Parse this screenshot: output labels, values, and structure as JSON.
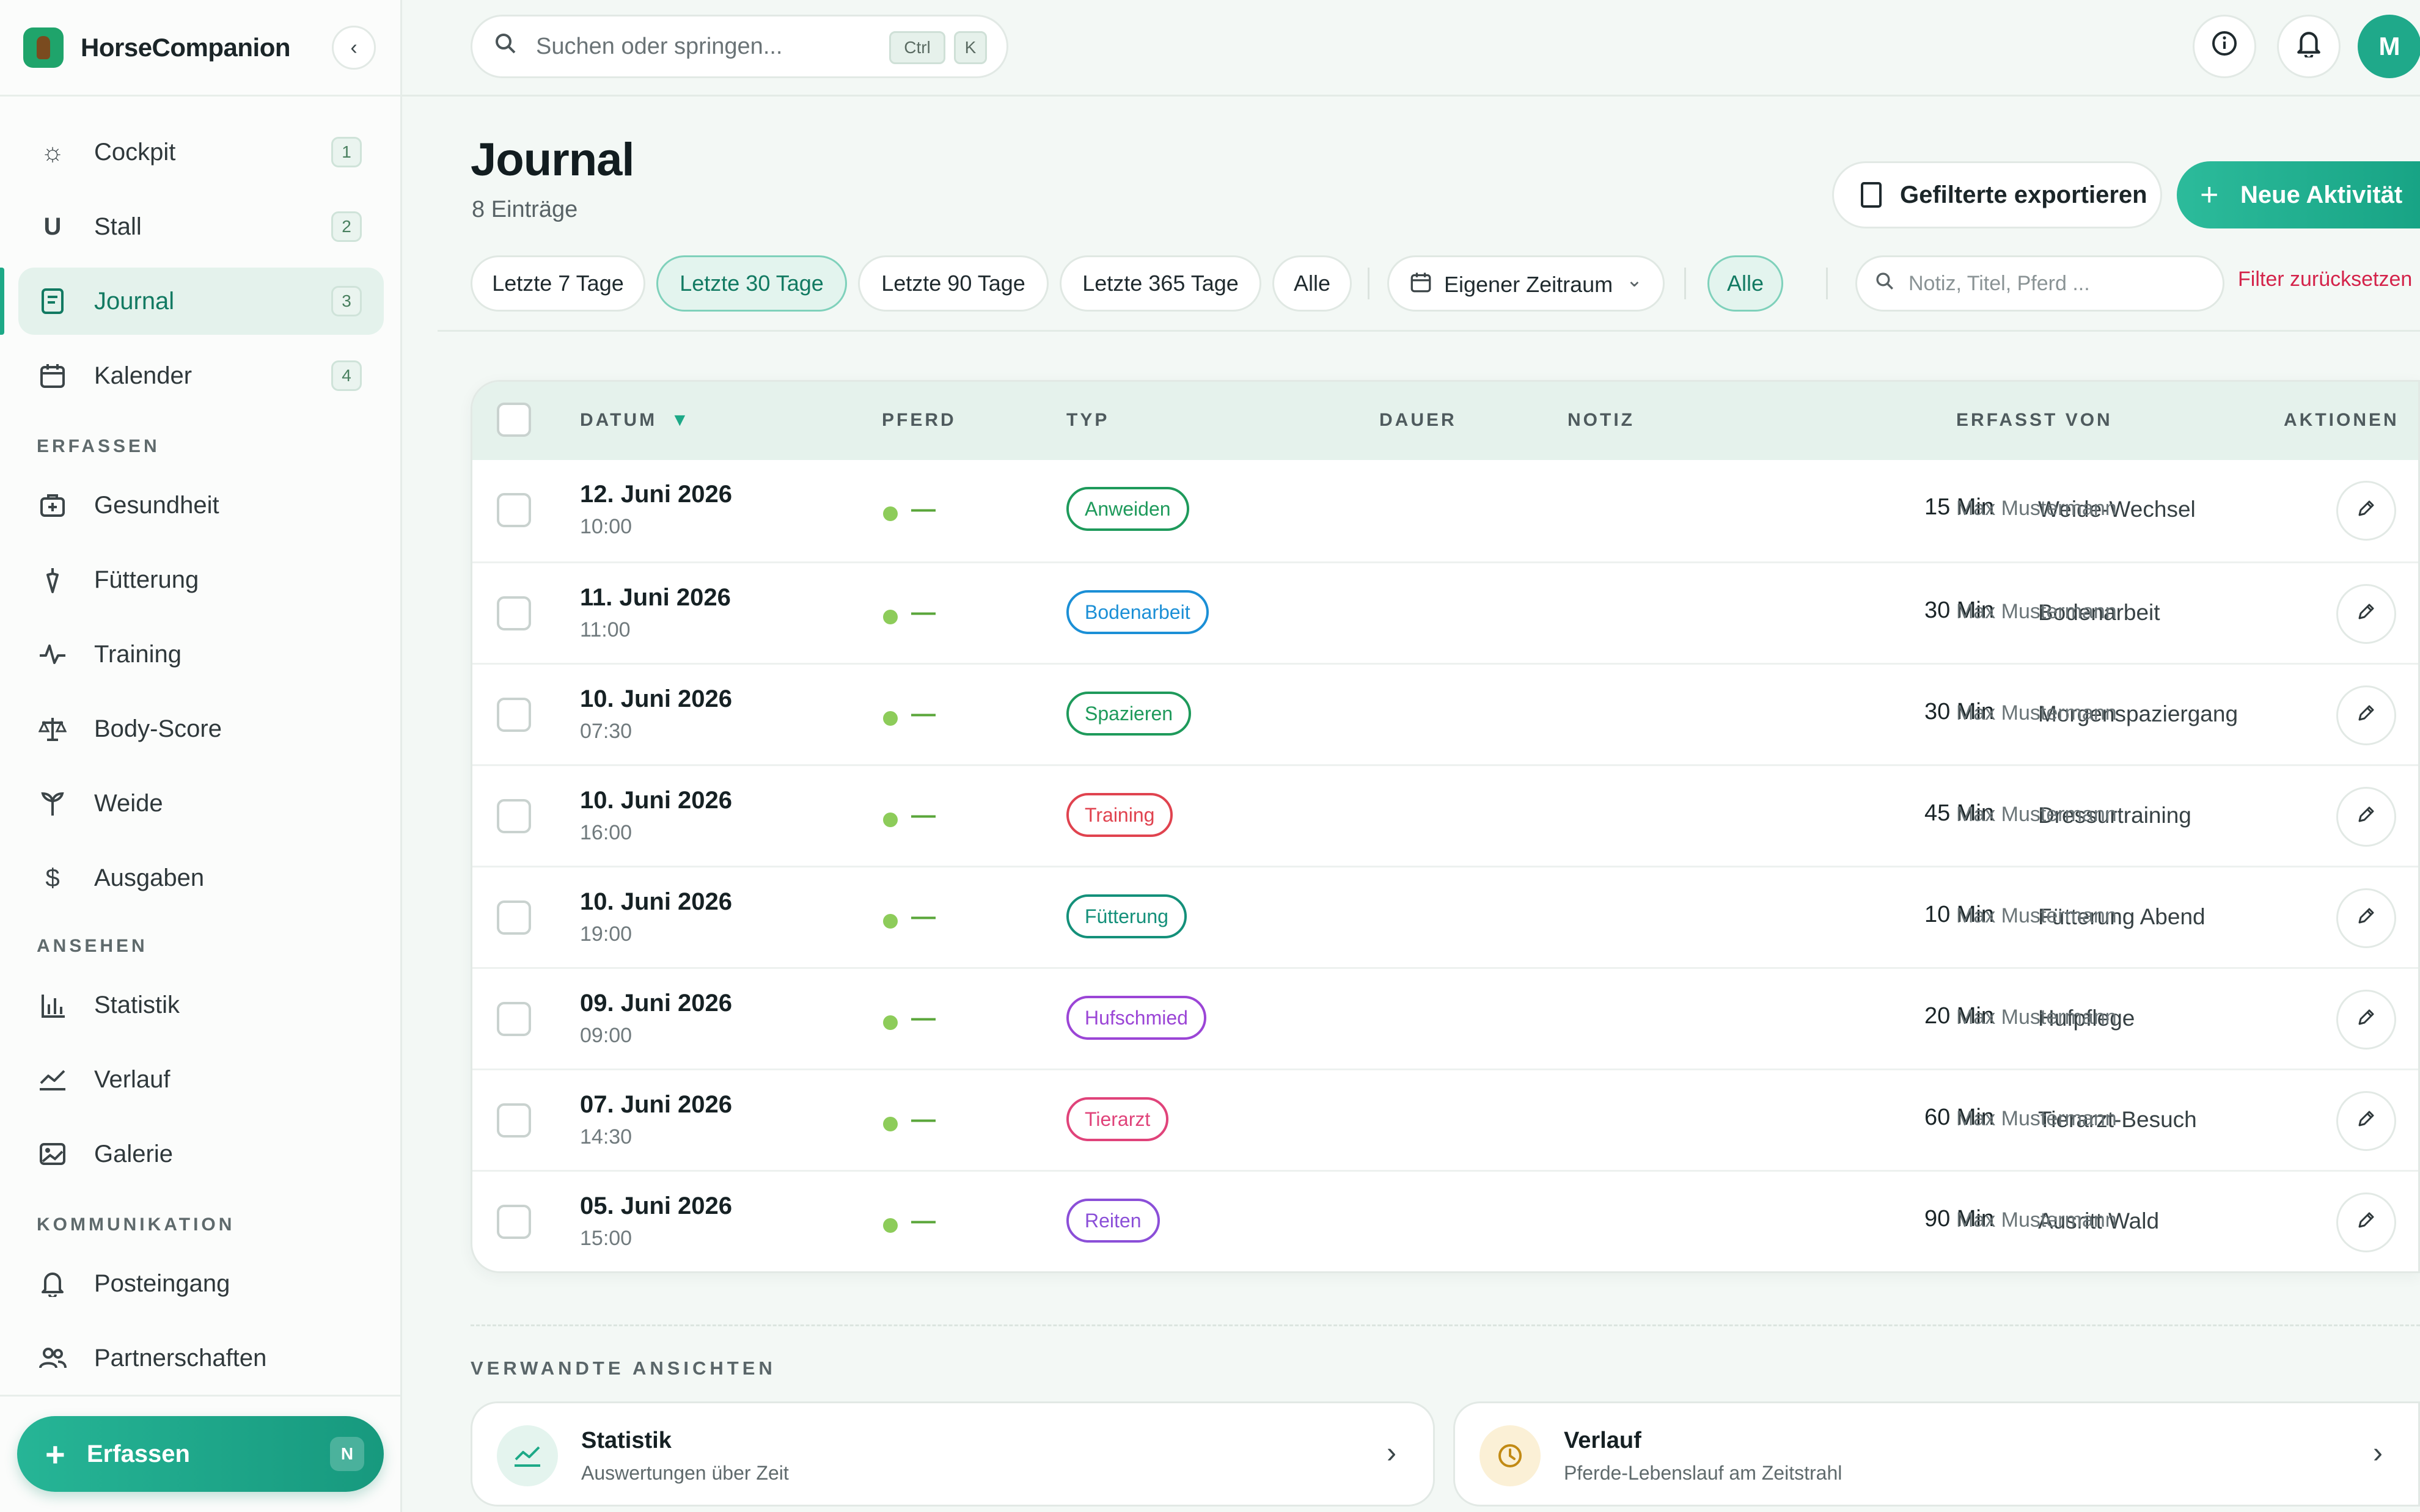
{
  "app": {
    "name": "HorseCompanion"
  },
  "sidebar": {
    "main": [
      {
        "label": "Cockpit",
        "badge": "1",
        "icon": "sun-icon"
      },
      {
        "label": "Stall",
        "badge": "2",
        "icon": "horseshoe-icon"
      },
      {
        "label": "Journal",
        "badge": "3",
        "icon": "journal-icon",
        "active": true
      },
      {
        "label": "Kalender",
        "badge": "4",
        "icon": "calendar-icon"
      }
    ],
    "sections": {
      "erfassen": "ERFASSEN",
      "ansehen": "ANSEHEN",
      "kommunikation": "KOMMUNIKATION"
    },
    "erfassen_items": [
      {
        "label": "Gesundheit",
        "icon": "medical-kit-icon"
      },
      {
        "label": "Fütterung",
        "icon": "carrot-icon"
      },
      {
        "label": "Training",
        "icon": "activity-icon"
      },
      {
        "label": "Body-Score",
        "icon": "scale-icon"
      },
      {
        "label": "Weide",
        "icon": "sprout-icon"
      },
      {
        "label": "Ausgaben",
        "icon": "dollar-icon"
      }
    ],
    "ansehen_items": [
      {
        "label": "Statistik",
        "icon": "bar-chart-icon"
      },
      {
        "label": "Verlauf",
        "icon": "trend-icon"
      },
      {
        "label": "Galerie",
        "icon": "image-icon"
      }
    ],
    "kommunikation_items": [
      {
        "label": "Posteingang",
        "icon": "bell-icon"
      },
      {
        "label": "Partnerschaften",
        "icon": "users-icon"
      }
    ],
    "erfassen_button": {
      "label": "Erfassen",
      "shortcut": "N"
    }
  },
  "topbar": {
    "search_placeholder": "Suchen oder springen...",
    "kbd": [
      "Ctrl",
      "K"
    ],
    "avatar": "M"
  },
  "header": {
    "title": "Journal",
    "count": "8 Einträge",
    "export_label": "Gefilterte exportieren",
    "new_label": "Neue Aktivität"
  },
  "filters": {
    "ranges": [
      "Letzte 7 Tage",
      "Letzte 30 Tage",
      "Letzte 90 Tage",
      "Letzte 365 Tage",
      "Alle"
    ],
    "active_range": "Letzte 30 Tage",
    "custom_range": "Eigener Zeitraum",
    "horse_filter": "Alle",
    "search_placeholder": "Notiz, Titel, Pferd ...",
    "reset": "Filter zurücksetzen"
  },
  "table": {
    "columns": {
      "datum": "DATUM",
      "pferd": "PFERD",
      "typ": "TYP",
      "dauer": "DAUER",
      "notiz": "NOTIZ",
      "erfasst": "ERFASST VON",
      "aktionen": "AKTIONEN"
    },
    "sort_indicator": "▼",
    "rows": [
      {
        "date": "12. Juni 2026",
        "time": "10:00",
        "horse": "—",
        "type": "Anweiden",
        "color": "#1e9a5b",
        "duration": "15 Min",
        "note": "Weide-Wechsel",
        "user": "Max Mustermann"
      },
      {
        "date": "11. Juni 2026",
        "time": "11:00",
        "horse": "—",
        "type": "Bodenarbeit",
        "color": "#1b8fd6",
        "duration": "30 Min",
        "note": "Bodenarbeit",
        "user": "Max Mustermann"
      },
      {
        "date": "10. Juni 2026",
        "time": "07:30",
        "horse": "—",
        "type": "Spazieren",
        "color": "#1e9a5b",
        "duration": "30 Min",
        "note": "Morgenspaziergang",
        "user": "Max Mustermann"
      },
      {
        "date": "10. Juni 2026",
        "time": "16:00",
        "horse": "—",
        "type": "Training",
        "color": "#e0434f",
        "duration": "45 Min",
        "note": "Dressurtraining",
        "user": "Max Mustermann"
      },
      {
        "date": "10. Juni 2026",
        "time": "19:00",
        "horse": "—",
        "type": "Fütterung",
        "color": "#14907a",
        "duration": "10 Min",
        "note": "Fütterung Abend",
        "user": "Max Mustermann"
      },
      {
        "date": "09. Juni 2026",
        "time": "09:00",
        "horse": "—",
        "type": "Hufschmied",
        "color": "#9b45d6",
        "duration": "20 Min",
        "note": "Hufpflege",
        "user": "Max Mustermann"
      },
      {
        "date": "07. Juni 2026",
        "time": "14:30",
        "horse": "—",
        "type": "Tierarzt",
        "color": "#e0437a",
        "duration": "60 Min",
        "note": "Tierarzt-Besuch",
        "user": "Max Mustermann"
      },
      {
        "date": "05. Juni 2026",
        "time": "15:00",
        "horse": "—",
        "type": "Reiten",
        "color": "#8b4fd8",
        "duration": "90 Min",
        "note": "Ausritt Wald",
        "user": "Max Mustermann"
      }
    ]
  },
  "related": {
    "title": "VERWANDTE ANSICHTEN",
    "cards": [
      {
        "title": "Statistik",
        "subtitle": "Auswertungen über Zeit",
        "icon": "trend-icon"
      },
      {
        "title": "Verlauf",
        "subtitle": "Pferde-Lebenslauf am Zeitstrahl",
        "icon": "clock-icon"
      }
    ]
  },
  "colors": {
    "accent": "#1da987",
    "accent_dark": "#127a62",
    "danger": "#d4234a"
  }
}
